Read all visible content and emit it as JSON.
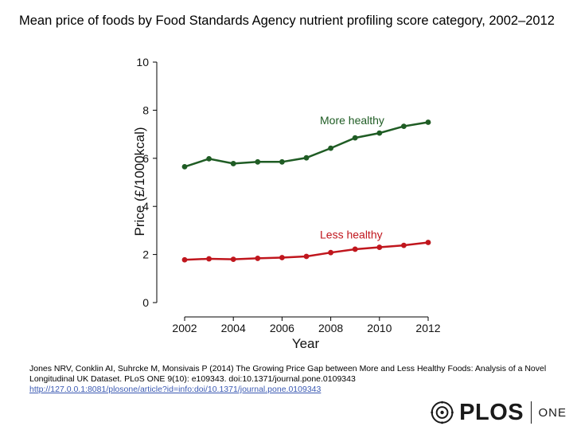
{
  "slide": {
    "title": "Mean price of foods by Food Standards Agency nutrient profiling score category, 2002–2012"
  },
  "chart_data": {
    "type": "line",
    "title": "",
    "xlabel": "Year",
    "ylabel": "Price (£/1000kcal)",
    "xlim": [
      2002,
      2012
    ],
    "ylim": [
      0,
      10
    ],
    "x_ticks": [
      "2002",
      "2004",
      "2006",
      "2008",
      "2010",
      "2012"
    ],
    "y_ticks": [
      "0",
      "2",
      "4",
      "6",
      "8",
      "10"
    ],
    "grid": false,
    "legend": "inline labels",
    "x": [
      2002,
      2003,
      2004,
      2005,
      2006,
      2007,
      2008,
      2009,
      2010,
      2011,
      2012
    ],
    "series": [
      {
        "name": "More healthy",
        "color": "#1f5c24",
        "values": [
          5.65,
          5.98,
          5.78,
          5.85,
          5.85,
          6.02,
          6.42,
          6.85,
          7.05,
          7.33,
          7.5
        ]
      },
      {
        "name": "Less healthy",
        "color": "#c0161d",
        "values": [
          1.78,
          1.82,
          1.8,
          1.84,
          1.87,
          1.92,
          2.08,
          2.22,
          2.3,
          2.38,
          2.5
        ]
      }
    ]
  },
  "citation": {
    "text": "Jones NRV, Conklin AI, Suhrcke M, Monsivais P (2014) The Growing Price Gap between More and Less Healthy Foods: Analysis of a Novel Longitudinal UK Dataset. PLoS ONE 9(10): e109343. doi:10.1371/journal.pone.0109343",
    "link": "http://127.0.0.1:8081/plosone/article?id=info:doi/10.1371/journal.pone.0109343"
  },
  "logo": {
    "word": "PLOS",
    "sub": "ONE"
  }
}
